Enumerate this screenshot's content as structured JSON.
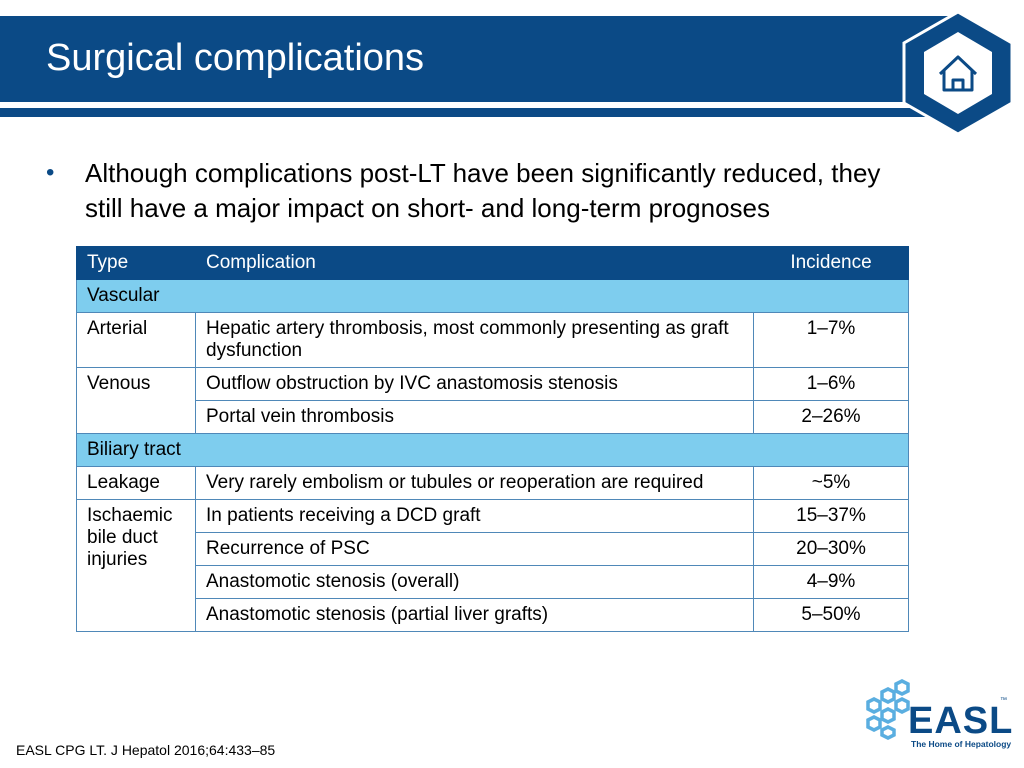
{
  "slide": {
    "title": "Surgical complications",
    "bullet": "Although complications post-LT have been significantly reduced, they still have a major impact on short- and long-term prognoses",
    "home_icon": "home-icon"
  },
  "table": {
    "headers": {
      "type": "Type",
      "complication": "Complication",
      "incidence": "Incidence"
    },
    "sections": [
      {
        "label": "Vascular",
        "groups": [
          {
            "type": "Arterial",
            "rows": [
              {
                "complication": "Hepatic artery thrombosis, most commonly presenting as graft dysfunction",
                "incidence": "1–7%"
              }
            ]
          },
          {
            "type": "Venous",
            "rows": [
              {
                "complication": "Outflow obstruction by IVC anastomosis stenosis",
                "incidence": "1–6%"
              },
              {
                "complication": "Portal vein thrombosis",
                "incidence": "2–26%"
              }
            ]
          }
        ]
      },
      {
        "label": "Biliary tract",
        "groups": [
          {
            "type": "Leakage",
            "rows": [
              {
                "complication": "Very rarely embolism or tubules or reoperation are required",
                "incidence": "~5%"
              }
            ]
          },
          {
            "type": "Ischaemic bile duct injuries",
            "rows": [
              {
                "complication": "In patients receiving a DCD graft",
                "incidence": "15–37%"
              },
              {
                "complication": "Recurrence of PSC",
                "incidence": "20–30%"
              },
              {
                "complication": "Anastomotic stenosis (overall)",
                "incidence": "4–9%"
              },
              {
                "complication": "Anastomotic stenosis (partial liver grafts)",
                "incidence": "5–50%"
              }
            ]
          }
        ]
      }
    ]
  },
  "footer": {
    "citation": "EASL CPG LT. J Hepatol 2016;64:433–85"
  },
  "logo": {
    "word": "EASL",
    "tm": "™",
    "tagline": "The Home of Hepatology"
  },
  "colors": {
    "brand": "#0b4a86",
    "section": "#7ecdee"
  }
}
